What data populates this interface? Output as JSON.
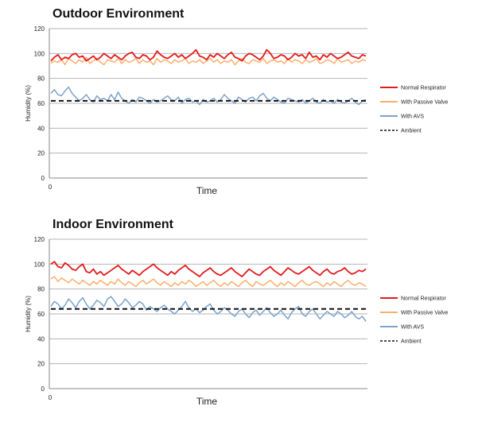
{
  "chart_data": [
    {
      "type": "line",
      "title": "Outdoor Environment",
      "xlabel": "Time",
      "ylabel": "Humidity (%)",
      "ylim": [
        0,
        120
      ],
      "yticks": [
        0,
        20,
        40,
        60,
        80,
        100,
        120
      ],
      "x_tick_labels": [
        "0"
      ],
      "grid": true,
      "legend_position": "right",
      "series": [
        {
          "name": "Normal Respirator",
          "color": "#e31a1c",
          "style": "solid",
          "values": [
            94,
            97,
            99,
            95,
            97,
            96,
            99,
            100,
            97,
            98,
            94,
            96,
            98,
            95,
            97,
            100,
            98,
            96,
            99,
            97,
            95,
            98,
            100,
            101,
            97,
            96,
            99,
            98,
            95,
            97,
            102,
            99,
            97,
            96,
            98,
            100,
            97,
            99,
            96,
            98,
            100,
            103,
            98,
            97,
            95,
            99,
            97,
            100,
            98,
            96,
            99,
            101,
            97,
            96,
            94,
            98,
            100,
            99,
            97,
            95,
            98,
            103,
            100,
            96,
            97,
            99,
            98,
            95,
            97,
            100,
            98,
            99,
            96,
            101,
            97,
            98,
            95,
            99,
            97,
            100,
            98,
            96,
            97,
            99,
            101,
            98,
            97,
            96,
            99,
            98
          ]
        },
        {
          "name": "With Passive Valve",
          "color": "#fdae6b",
          "style": "solid",
          "values": [
            92,
            94,
            93,
            95,
            91,
            96,
            94,
            92,
            95,
            93,
            97,
            92,
            94,
            96,
            93,
            91,
            95,
            94,
            93,
            96,
            92,
            95,
            93,
            94,
            96,
            92,
            95,
            93,
            94,
            91,
            96,
            93,
            95,
            94,
            92,
            95,
            93,
            94,
            96,
            92,
            94,
            93,
            95,
            92,
            94,
            96,
            93,
            95,
            92,
            94,
            93,
            95,
            91,
            94,
            96,
            93,
            92,
            95,
            94,
            93,
            96,
            92,
            94,
            95,
            93,
            94,
            92,
            96,
            93,
            95,
            94,
            92,
            95,
            93,
            94,
            96,
            92,
            93,
            95,
            94,
            92,
            96,
            93,
            94,
            95,
            92,
            94,
            93,
            95,
            94
          ]
        },
        {
          "name": "With AVS",
          "color": "#7ba3cc",
          "style": "solid",
          "values": [
            68,
            71,
            67,
            66,
            70,
            73,
            68,
            65,
            62,
            64,
            67,
            63,
            61,
            66,
            63,
            64,
            62,
            67,
            63,
            69,
            64,
            62,
            60,
            63,
            61,
            65,
            64,
            62,
            60,
            63,
            61,
            62,
            64,
            66,
            63,
            62,
            65,
            60,
            63,
            64,
            61,
            62,
            59,
            63,
            61,
            62,
            64,
            61,
            63,
            67,
            64,
            62,
            60,
            65,
            63,
            61,
            64,
            65,
            62,
            66,
            68,
            64,
            62,
            65,
            63,
            61,
            60,
            64,
            63,
            62,
            61,
            63,
            60,
            62,
            64,
            61,
            60,
            63,
            61,
            62,
            60,
            63,
            61,
            60,
            62,
            64,
            61,
            59,
            62,
            63
          ]
        },
        {
          "name": "Ambient",
          "color": "#111111",
          "style": "dashed",
          "values": [
            62,
            62
          ]
        }
      ]
    },
    {
      "type": "line",
      "title": "Indoor Environment",
      "xlabel": "Time",
      "ylabel": "Humidity (%)",
      "ylim": [
        0,
        120
      ],
      "yticks": [
        0,
        20,
        40,
        60,
        80,
        100,
        120
      ],
      "x_tick_labels": [
        "0"
      ],
      "grid": true,
      "legend_position": "right",
      "series": [
        {
          "name": "Normal Respirator",
          "color": "#e31a1c",
          "style": "solid",
          "values": [
            100,
            102,
            98,
            97,
            101,
            99,
            96,
            95,
            98,
            100,
            94,
            93,
            96,
            92,
            94,
            91,
            93,
            95,
            97,
            99,
            96,
            94,
            92,
            95,
            93,
            91,
            94,
            96,
            98,
            100,
            97,
            95,
            93,
            91,
            94,
            92,
            95,
            97,
            99,
            96,
            94,
            92,
            90,
            93,
            95,
            97,
            94,
            92,
            91,
            93,
            95,
            97,
            94,
            92,
            90,
            93,
            96,
            94,
            92,
            91,
            94,
            96,
            98,
            95,
            93,
            91,
            94,
            97,
            95,
            93,
            92,
            94,
            96,
            98,
            95,
            93,
            91,
            94,
            96,
            93,
            92,
            94,
            95,
            97,
            94,
            92,
            93,
            95,
            94,
            96
          ]
        },
        {
          "name": "With Passive Valve",
          "color": "#fdae6b",
          "style": "solid",
          "values": [
            88,
            90,
            86,
            89,
            87,
            85,
            88,
            86,
            84,
            87,
            85,
            83,
            86,
            84,
            87,
            85,
            83,
            86,
            84,
            88,
            85,
            83,
            86,
            84,
            82,
            85,
            87,
            84,
            86,
            88,
            85,
            83,
            86,
            84,
            82,
            85,
            83,
            86,
            84,
            87,
            85,
            82,
            84,
            86,
            83,
            85,
            87,
            84,
            82,
            85,
            83,
            86,
            84,
            82,
            85,
            87,
            84,
            82,
            86,
            84,
            83,
            85,
            87,
            84,
            82,
            85,
            83,
            86,
            84,
            82,
            85,
            87,
            84,
            83,
            85,
            86,
            84,
            82,
            85,
            83,
            86,
            84,
            82,
            85,
            87,
            84,
            83,
            85,
            84,
            82
          ]
        },
        {
          "name": "With AVS",
          "color": "#7ba3cc",
          "style": "solid",
          "values": [
            66,
            70,
            68,
            64,
            67,
            72,
            69,
            65,
            70,
            73,
            68,
            64,
            67,
            71,
            69,
            66,
            72,
            74,
            70,
            66,
            68,
            72,
            69,
            65,
            67,
            70,
            68,
            63,
            66,
            64,
            62,
            65,
            67,
            64,
            62,
            60,
            63,
            66,
            70,
            65,
            62,
            64,
            61,
            63,
            66,
            68,
            63,
            60,
            62,
            65,
            63,
            60,
            58,
            62,
            64,
            60,
            57,
            61,
            63,
            59,
            62,
            65,
            61,
            58,
            60,
            63,
            59,
            56,
            61,
            64,
            66,
            60,
            58,
            62,
            64,
            60,
            56,
            59,
            62,
            60,
            58,
            62,
            60,
            57,
            59,
            62,
            58,
            56,
            58,
            54
          ]
        },
        {
          "name": "Ambient",
          "color": "#111111",
          "style": "dashed",
          "values": [
            64,
            64
          ]
        }
      ]
    }
  ]
}
